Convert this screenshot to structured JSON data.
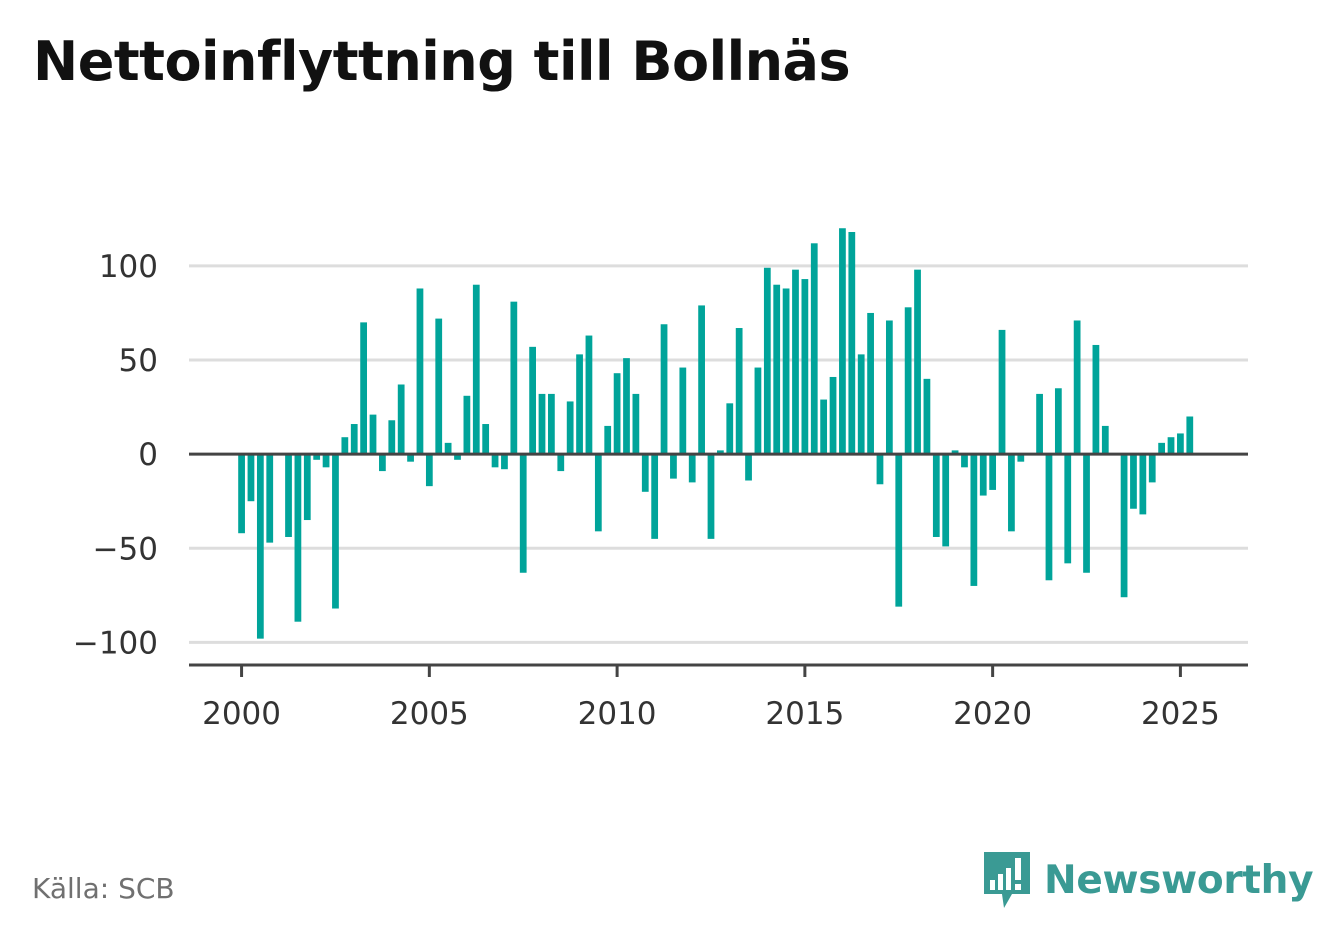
{
  "title": "Nettoinflyttning till Bollnäs",
  "source": "Källa: SCB",
  "brand": "Newsworthy",
  "colors": {
    "bar": "#00a49a",
    "grid": "#dddddd",
    "axis": "#444444",
    "text": "#333333",
    "brand": "#3a9a94"
  },
  "icons": [
    "newsworthy-logo-icon"
  ],
  "chart_data": {
    "type": "bar",
    "x_start": 2000.0,
    "x_step": 0.25,
    "values": [
      -42,
      -25,
      -98,
      -47,
      0,
      -44,
      -89,
      -35,
      -3,
      -7,
      -82,
      9,
      16,
      70,
      21,
      -9,
      18,
      37,
      -4,
      88,
      -17,
      72,
      6,
      -3,
      31,
      90,
      16,
      -7,
      -8,
      81,
      -63,
      57,
      32,
      32,
      -9,
      28,
      53,
      63,
      -41,
      15,
      43,
      51,
      32,
      -20,
      -45,
      69,
      -13,
      46,
      -15,
      79,
      -45,
      2,
      27,
      67,
      -14,
      46,
      99,
      90,
      88,
      98,
      93,
      112,
      29,
      41,
      120,
      118,
      53,
      75,
      -16,
      71,
      -81,
      78,
      98,
      40,
      -44,
      -49,
      2,
      -7,
      -70,
      -22,
      -19,
      66,
      -41,
      -4,
      0,
      32,
      -67,
      35,
      -58,
      71,
      -63,
      58,
      15,
      0,
      -76,
      -29,
      -32,
      -15,
      6,
      9,
      11,
      20
    ],
    "xlim": [
      1998.6,
      2026.8
    ],
    "ylim": [
      -112,
      135
    ],
    "y_ticks": [
      100,
      50,
      0,
      -50,
      -100
    ],
    "y_tick_labels": [
      "100",
      "50",
      "0",
      "−50",
      "−100"
    ],
    "x_ticks": [
      2000,
      2005,
      2010,
      2015,
      2020,
      2025
    ],
    "x_tick_labels": [
      "2000",
      "2005",
      "2010",
      "2015",
      "2020",
      "2025"
    ],
    "grid": true,
    "legend": "none",
    "xlabel": "",
    "ylabel": ""
  }
}
